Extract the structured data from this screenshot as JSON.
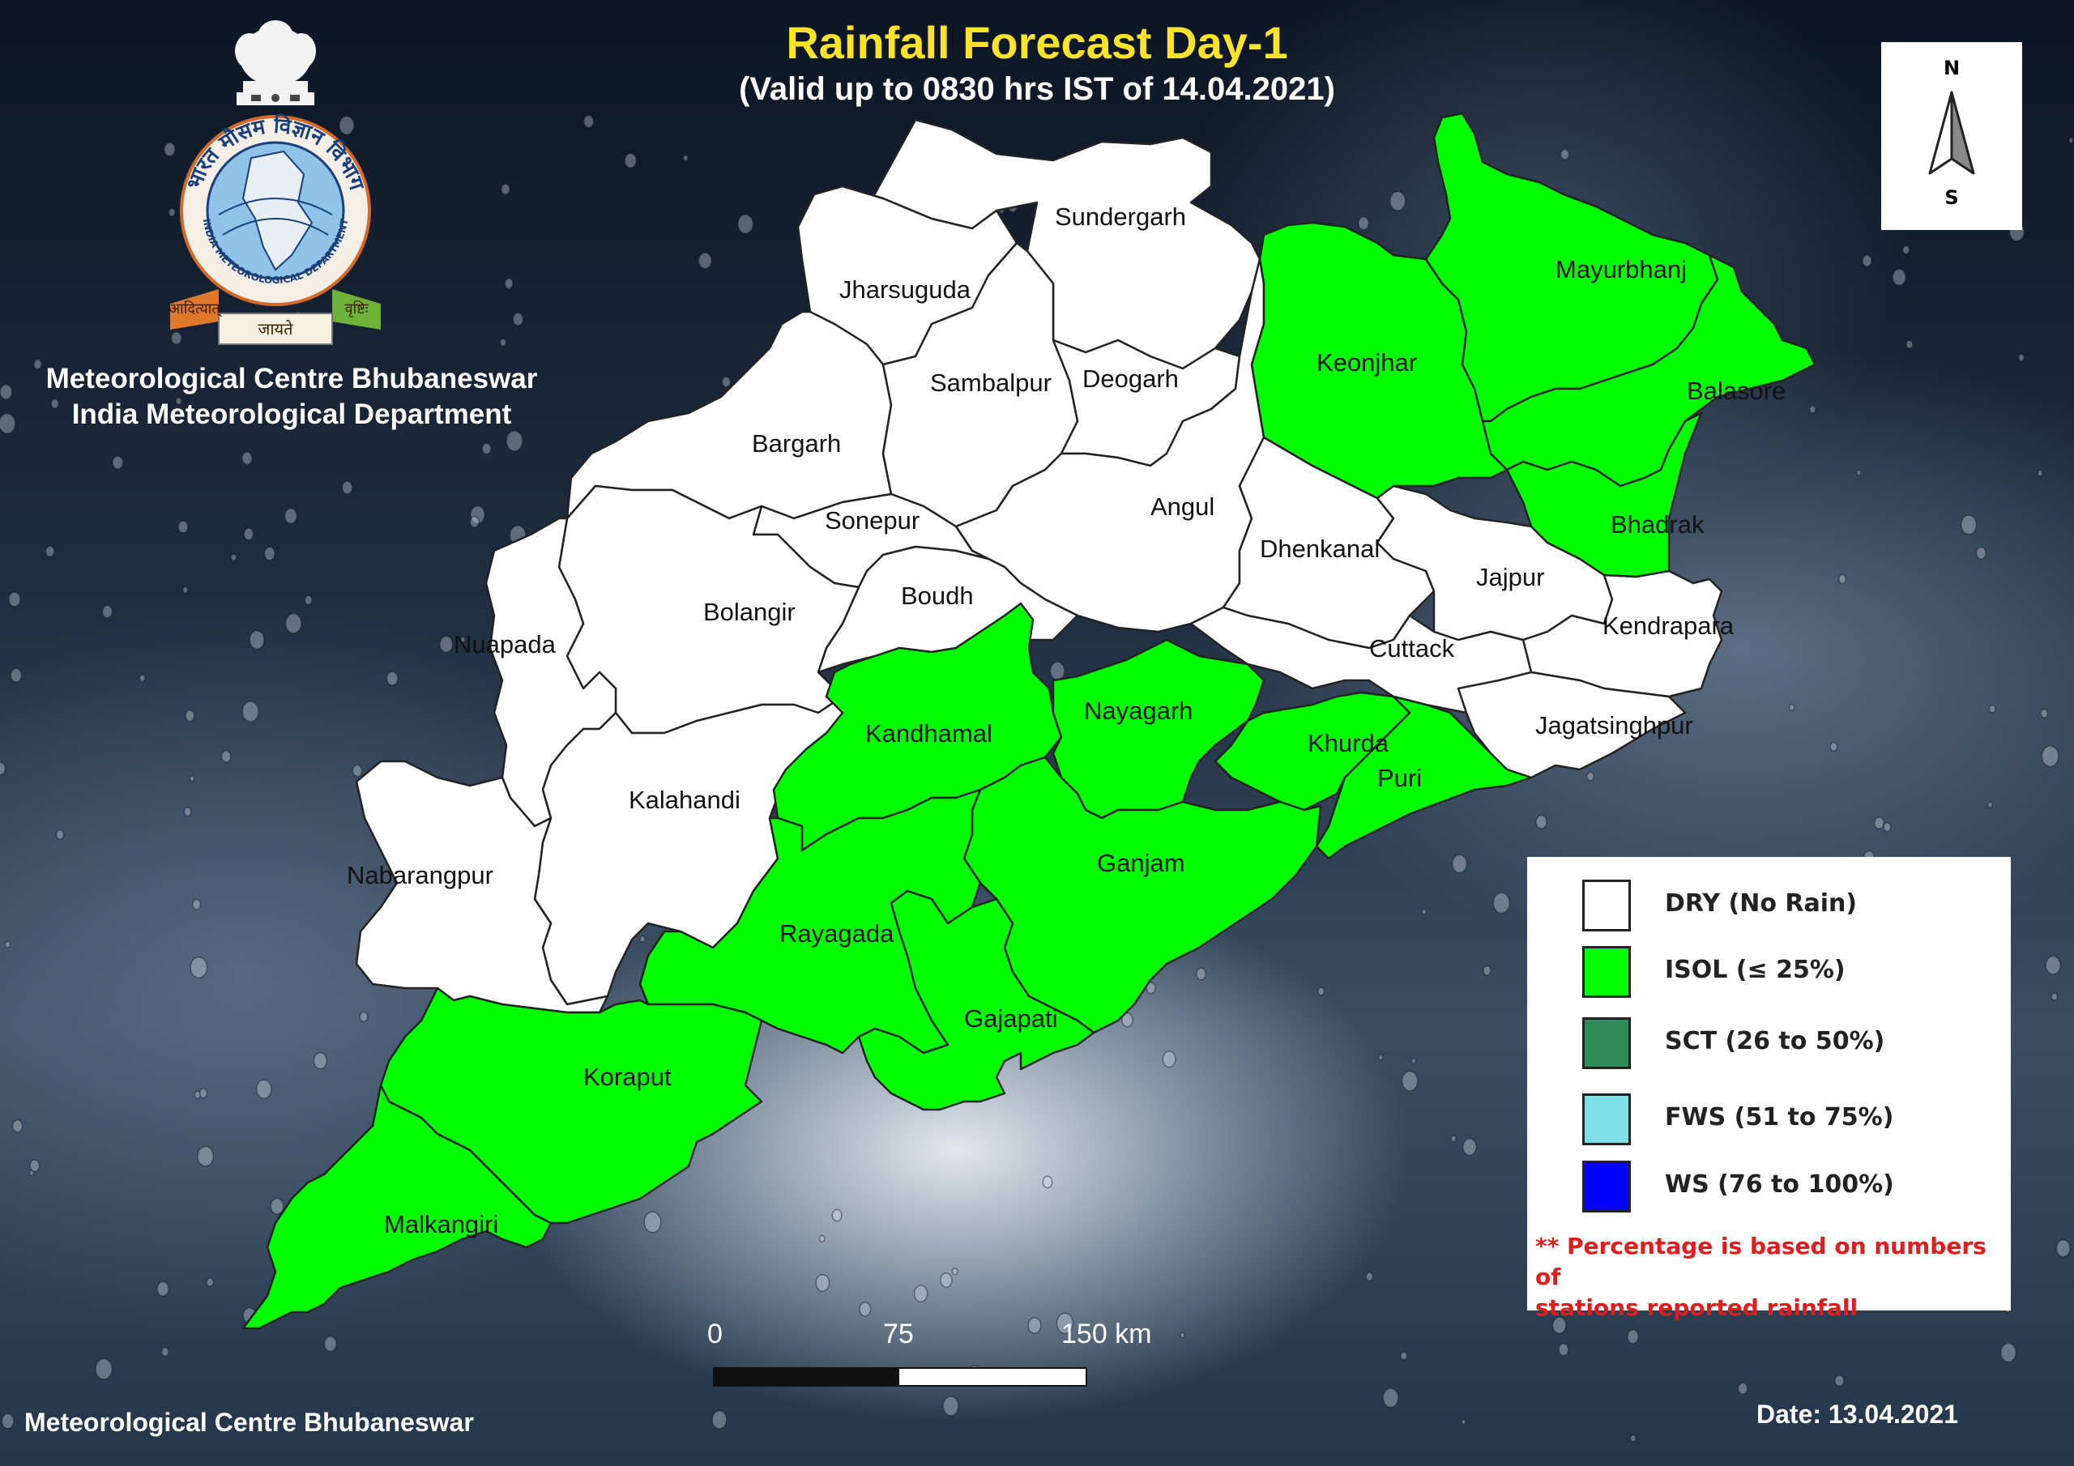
{
  "title": "Rainfall Forecast Day-1",
  "subtitle": "(Valid up to 0830 hrs IST of 14.04.2021)",
  "org": {
    "line1": "Meteorological Centre Bhubaneswar",
    "line2": "India Meteorological Department"
  },
  "emblem": {
    "hindi_ring": "भारत मौसम विज्ञान विभाग",
    "english_ring": "INDIA METEOROLOGICAL DEPARTMENT",
    "motto_left": "आदित्यात्",
    "motto_center": "जायते",
    "motto_right": "वृष्टिः"
  },
  "compass": {
    "north": "N",
    "south": "S"
  },
  "colors": {
    "dry": "#ffffff",
    "isol": "#00ff00",
    "sct": "#2e8b57",
    "fws": "#7fdfe6",
    "ws": "#0000ff",
    "title": "#ffe22a",
    "note": "#e21c1c"
  },
  "districts": [
    {
      "name": "Sundergarh",
      "category": "DRY"
    },
    {
      "name": "Jharsuguda",
      "category": "DRY"
    },
    {
      "name": "Sambalpur",
      "category": "DRY"
    },
    {
      "name": "Deogarh",
      "category": "DRY"
    },
    {
      "name": "Bargarh",
      "category": "DRY"
    },
    {
      "name": "Sonepur",
      "category": "DRY"
    },
    {
      "name": "Angul",
      "category": "DRY"
    },
    {
      "name": "Dhenkanal",
      "category": "DRY"
    },
    {
      "name": "Jajpur",
      "category": "DRY"
    },
    {
      "name": "Boudh",
      "category": "DRY"
    },
    {
      "name": "Bolangir",
      "category": "DRY"
    },
    {
      "name": "Nuapada",
      "category": "DRY"
    },
    {
      "name": "Kendrapara",
      "category": "DRY"
    },
    {
      "name": "Cuttack",
      "category": "DRY"
    },
    {
      "name": "Jagatsinghpur",
      "category": "DRY"
    },
    {
      "name": "Kalahandi",
      "category": "DRY"
    },
    {
      "name": "Nabarangpur",
      "category": "DRY"
    },
    {
      "name": "Keonjhar",
      "category": "ISOL"
    },
    {
      "name": "Mayurbhanj",
      "category": "ISOL"
    },
    {
      "name": "Balasore",
      "category": "ISOL"
    },
    {
      "name": "Bhadrak",
      "category": "ISOL"
    },
    {
      "name": "Kandhamal",
      "category": "ISOL"
    },
    {
      "name": "Nayagarh",
      "category": "ISOL"
    },
    {
      "name": "Khurda",
      "category": "ISOL"
    },
    {
      "name": "Puri",
      "category": "ISOL"
    },
    {
      "name": "Ganjam",
      "category": "ISOL"
    },
    {
      "name": "Rayagada",
      "category": "ISOL"
    },
    {
      "name": "Gajapati",
      "category": "ISOL"
    },
    {
      "name": "Koraput",
      "category": "ISOL"
    },
    {
      "name": "Malkangiri",
      "category": "ISOL"
    }
  ],
  "legend": {
    "items": [
      {
        "label": "DRY (No Rain)",
        "color": "#ffffff"
      },
      {
        "label": "ISOL (≤ 25%)",
        "color": "#00ff00"
      },
      {
        "label": "SCT (26 to 50%)",
        "color": "#2e8b57"
      },
      {
        "label": "FWS (51 to 75%)",
        "color": "#7fdfe6"
      },
      {
        "label": "WS (76 to 100%)",
        "color": "#0000ff"
      }
    ],
    "note_line1": "** Percentage is based on numbers of",
    "note_line2": "stations reported rainfall"
  },
  "scale": {
    "label_0": "0",
    "label_mid": "75",
    "label_end": "150 km"
  },
  "footer": {
    "left": "Meteorological Centre Bhubaneswar",
    "date": "Date: 13.04.2021"
  }
}
